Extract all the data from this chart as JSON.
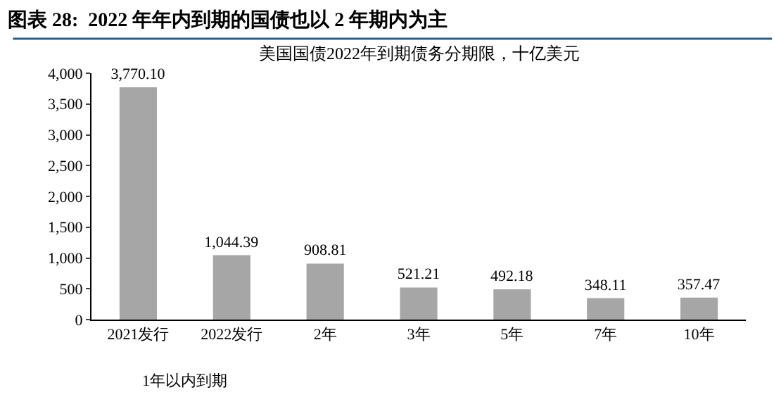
{
  "chart_data": {
    "type": "bar",
    "title": "图表 28:  2022 年年内到期的国债也以 2 年期内为主",
    "subtitle": "美国国债2022年到期债务分期限，十亿美元",
    "categories": [
      "2021发行",
      "2022发行",
      "2年",
      "3年",
      "5年",
      "7年",
      "10年"
    ],
    "values": [
      3770.1,
      1044.39,
      908.81,
      521.21,
      492.18,
      348.11,
      357.47
    ],
    "value_labels": [
      "3,770.10",
      "1,044.39",
      "908.81",
      "521.21",
      "492.18",
      "348.11",
      "357.47"
    ],
    "color": "#a6a6a6",
    "ylim": [
      0,
      4000
    ],
    "yticks": [
      0,
      500,
      {
        "value": 1000,
        "label": "1,000"
      },
      {
        "value": 1500,
        "label": "1,500"
      },
      {
        "value": 2000,
        "label": "2,000"
      },
      {
        "value": 2500,
        "label": "2,500"
      },
      {
        "value": 3000,
        "label": "3,000"
      },
      {
        "value": 3500,
        "label": "3,500"
      },
      {
        "value": 4000,
        "label": "4,000"
      }
    ],
    "annotations": [
      "1年以内到期"
    ]
  }
}
